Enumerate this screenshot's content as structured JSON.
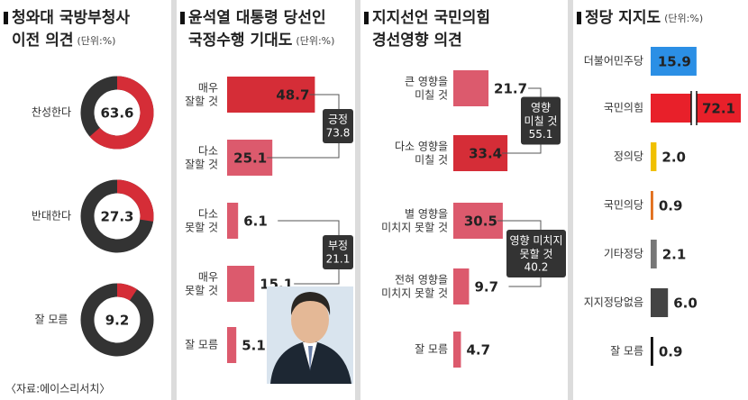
{
  "chart_data": [
    {
      "type": "donut",
      "title": [
        "청와대 국방부청사",
        "이전 의견"
      ],
      "unit": "(단위:%)",
      "categories": [
        "찬성한다",
        "반대한다",
        "잘 모름"
      ],
      "values": [
        63.6,
        27.3,
        9.2
      ],
      "color": "#d52d37",
      "rest_color": "#333333",
      "source": "〈자료:에이스리서치〉"
    },
    {
      "type": "bar",
      "title": [
        "윤석열 대통령 당선인",
        "국정수행 기대도"
      ],
      "unit": "(단위:%)",
      "categories": [
        "매우\n잘할 것",
        "다소\n잘할 것",
        "다소\n못할 것",
        "매우\n못할 것",
        "잘 모름"
      ],
      "values": [
        48.7,
        25.1,
        6.1,
        15.1,
        5.1
      ],
      "colors": [
        "#d52d37",
        "#dc5a6d",
        "#dc5a6d",
        "#dc5a6d",
        "#dc5a6d"
      ],
      "annotations": [
        {
          "label": "긍정",
          "value": 73.8
        },
        {
          "label": "부정",
          "value": 21.1
        }
      ]
    },
    {
      "type": "bar",
      "title": [
        "지지선언 국민의힘",
        "경선영향 의견"
      ],
      "categories": [
        "큰 영향을\n미칠 것",
        "다소 영향을\n미칠 것",
        "별 영향을\n미치지 못할 것",
        "전혀 영향을\n미치지 못할 것",
        "잘 모름"
      ],
      "values": [
        21.7,
        33.4,
        30.5,
        9.7,
        4.7
      ],
      "colors": [
        "#dc5a6d",
        "#d52d37",
        "#dc5a6d",
        "#dc5a6d",
        "#dc5a6d"
      ],
      "annotations": [
        {
          "label": "영향\n미칠 것",
          "value": 55.1
        },
        {
          "label": "영향 미치지\n못할 것",
          "value": 40.2
        }
      ]
    },
    {
      "type": "bar",
      "title": [
        "정당 지지도"
      ],
      "unit": "(단위:%)",
      "categories": [
        "더불어민주당",
        "국민의힘",
        "정의당",
        "국민의당",
        "기타정당",
        "지지정당없음",
        "잘 모름"
      ],
      "values": [
        15.9,
        72.1,
        2,
        0.9,
        2.1,
        6,
        0.9
      ],
      "value_labels": [
        "15.9",
        "72.1",
        "2.0",
        "0.9",
        "2.1",
        "6.0",
        "0.9"
      ],
      "colors": [
        "#2b8fe5",
        "#e8202a",
        "#f0c000",
        "#e2701d",
        "#777777",
        "#444444",
        "#111111"
      ]
    }
  ]
}
